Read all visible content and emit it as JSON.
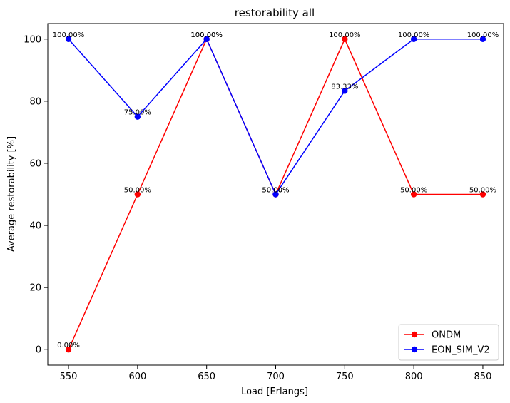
{
  "chart_data": {
    "type": "line",
    "title": "restorability all",
    "xlabel": "Load [Erlangs]",
    "ylabel": "Average restorability [%]",
    "x": [
      550,
      600,
      650,
      700,
      750,
      800,
      850
    ],
    "xticks": [
      "550",
      "600",
      "650",
      "700",
      "750",
      "800",
      "850"
    ],
    "yticks": [
      "0",
      "20",
      "40",
      "60",
      "80",
      "100"
    ],
    "xlim": [
      535,
      865
    ],
    "ylim": [
      -5,
      105
    ],
    "grid": false,
    "legend_position": "lower-right",
    "series": [
      {
        "name": "ONDM",
        "color": "#ff0000",
        "marker": "circle",
        "values": [
          0,
          50,
          100,
          50,
          100,
          50,
          50
        ],
        "labels": [
          "0.00%",
          "50.00%",
          "100.00%",
          "50.00%",
          "100.00%",
          "50.00%",
          "50.00%"
        ]
      },
      {
        "name": "EON_SIM_V2",
        "color": "#0000ff",
        "marker": "circle",
        "values": [
          100,
          75,
          100,
          50,
          83.33,
          100,
          100
        ],
        "labels": [
          "100.00%",
          "75.00%",
          "100.00%",
          "50.00%",
          "83.33%",
          "100.00%",
          "100.00%"
        ]
      }
    ]
  }
}
